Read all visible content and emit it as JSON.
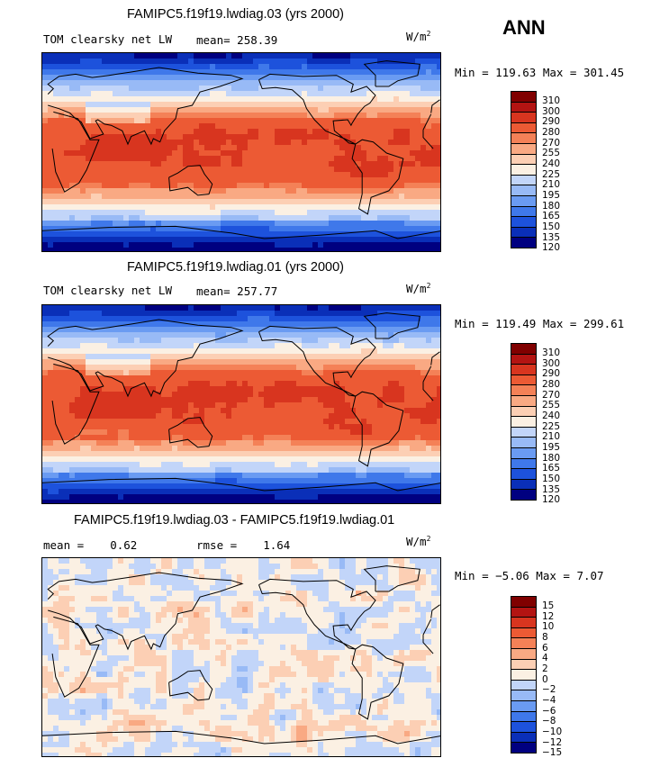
{
  "season": "ANN",
  "units_main": "W/m",
  "units_sup": "2",
  "palette": [
    "#000080",
    "#0a2fb8",
    "#1d52dc",
    "#3f78ea",
    "#6a9bf2",
    "#98baf6",
    "#c2d5f9",
    "#fbf0e3",
    "#fccfb4",
    "#f9a983",
    "#f48157",
    "#ec5a34",
    "#d8351f",
    "#b31412",
    "#800000"
  ],
  "chart_data": [
    {
      "type": "contour-map",
      "title": "FAMIPC5.f19f19.lwdiag.03 (yrs 2000)",
      "variable": "TOM clearsky net LW",
      "stat1_label": "mean=",
      "stat1_value": "258.39",
      "minmax_text": "Min = 119.63 Max = 301.45",
      "min": 119.63,
      "max": 301.45,
      "mean": 258.39,
      "colorbar_levels": [
        "120",
        "135",
        "150",
        "165",
        "180",
        "195",
        "210",
        "225",
        "240",
        "255",
        "270",
        "280",
        "290",
        "300",
        "310"
      ],
      "field": "absolute"
    },
    {
      "type": "contour-map",
      "title": "FAMIPC5.f19f19.lwdiag.01 (yrs 2000)",
      "variable": "TOM clearsky net LW",
      "stat1_label": "mean=",
      "stat1_value": "257.77",
      "minmax_text": "Min = 119.49 Max = 299.61",
      "min": 119.49,
      "max": 299.61,
      "mean": 257.77,
      "colorbar_levels": [
        "120",
        "135",
        "150",
        "165",
        "180",
        "195",
        "210",
        "225",
        "240",
        "255",
        "270",
        "280",
        "290",
        "300",
        "310"
      ],
      "field": "absolute"
    },
    {
      "type": "contour-map",
      "title": "FAMIPC5.f19f19.lwdiag.03 - FAMIPC5.f19f19.lwdiag.01",
      "stat1_label": "mean =",
      "stat1_value": "0.62",
      "stat2_label": "rmse =",
      "stat2_value": "1.64",
      "minmax_text": "Min = −5.06 Max = 7.07",
      "min": -5.06,
      "max": 7.07,
      "mean": 0.62,
      "rmse": 1.64,
      "colorbar_levels": [
        "−15",
        "−12",
        "−10",
        "−8",
        "−6",
        "−4",
        "−2",
        "0",
        "2",
        "4",
        "6",
        "8",
        "10",
        "12",
        "15"
      ],
      "field": "difference"
    }
  ]
}
